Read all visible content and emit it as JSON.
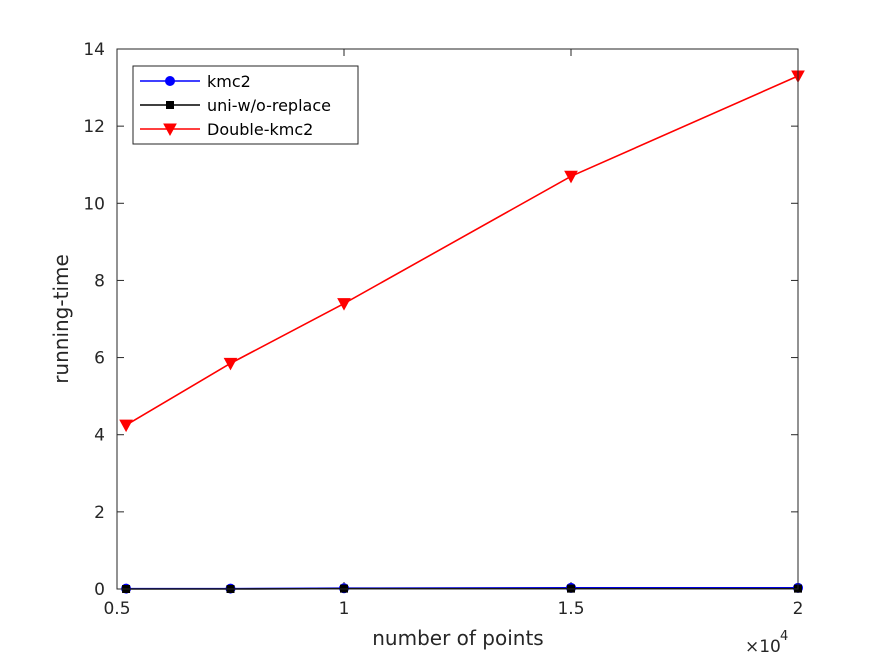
{
  "chart_data": {
    "type": "line",
    "xlabel": "number of points",
    "ylabel": "running-time",
    "x_multiplier": {
      "base": "×10",
      "exponent": "4"
    },
    "x": [
      0.52,
      0.75,
      1.0,
      1.5,
      2.0
    ],
    "xlim": [
      0.5,
      2
    ],
    "ylim": [
      0,
      14
    ],
    "xticks": [
      0.5,
      1,
      1.5,
      2
    ],
    "xtick_labels": [
      "0.5",
      "1",
      "1.5",
      "2"
    ],
    "yticks": [
      0,
      2,
      4,
      6,
      8,
      10,
      12,
      14
    ],
    "ytick_labels": [
      "0",
      "2",
      "4",
      "6",
      "8",
      "10",
      "12",
      "14"
    ],
    "grid": false,
    "legend_position": "top-left",
    "series": [
      {
        "name": "kmc2",
        "color": "#0000ff",
        "marker": "circle",
        "values": [
          0.01,
          0.01,
          0.02,
          0.03,
          0.03
        ]
      },
      {
        "name": "uni-w/o-replace",
        "color": "#000000",
        "marker": "square",
        "values": [
          0.0,
          0.0,
          0.01,
          0.01,
          0.01
        ]
      },
      {
        "name": "Double-kmc2",
        "color": "#ff0000",
        "marker": "triangle-down",
        "values": [
          4.25,
          5.85,
          7.4,
          10.7,
          13.3
        ]
      }
    ]
  }
}
